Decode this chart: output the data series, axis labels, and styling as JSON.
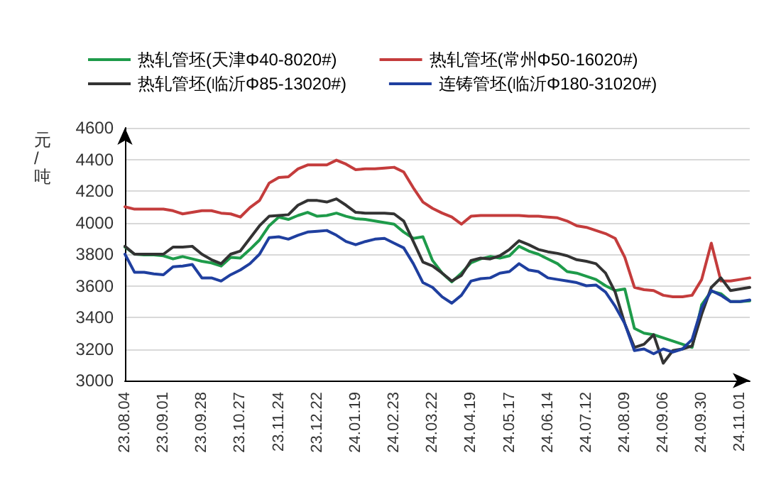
{
  "chart_data": {
    "type": "line",
    "ylabel": "元/吨",
    "legend": "top",
    "grid": "y",
    "marker": "none",
    "line_style": "solid",
    "categories": [
      "23.08.04",
      null,
      null,
      null,
      "23.09.01",
      null,
      null,
      null,
      "23.09.28",
      null,
      null,
      null,
      "23.10.27",
      null,
      null,
      null,
      "23.11.24",
      null,
      null,
      null,
      "23.12.22",
      null,
      null,
      null,
      "24.01.19",
      null,
      null,
      null,
      "24.02.23",
      null,
      null,
      null,
      "24.03.22",
      null,
      null,
      null,
      "24.04.19",
      null,
      null,
      null,
      "24.05.17",
      null,
      null,
      null,
      "24.06.14",
      null,
      null,
      null,
      "24.07.12",
      null,
      null,
      null,
      "24.08.09",
      null,
      null,
      null,
      "24.09.06",
      null,
      null,
      null,
      "24.09.30",
      null,
      null,
      null,
      "24.11.01",
      null
    ],
    "ylim": [
      3000,
      4600
    ],
    "yticks": [
      3000,
      3200,
      3400,
      3600,
      3800,
      4000,
      4200,
      4400,
      4600
    ],
    "series": [
      {
        "name": "热轧管坯(天津Φ40-8020#)",
        "color": "#1e9b4a",
        "values": [
          3845,
          3800,
          3795,
          3795,
          3790,
          3770,
          3785,
          3770,
          3755,
          3745,
          3725,
          3780,
          3775,
          3830,
          3890,
          3980,
          4035,
          4020,
          4045,
          4065,
          4040,
          4045,
          4060,
          4040,
          4025,
          4020,
          4010,
          4000,
          3990,
          3940,
          3900,
          3910,
          3760,
          3680,
          3625,
          3680,
          3745,
          3770,
          3785,
          3775,
          3790,
          3850,
          3820,
          3800,
          3770,
          3740,
          3690,
          3680,
          3660,
          3640,
          3600,
          3570,
          3580,
          3330,
          3300,
          3290,
          3270,
          3250,
          3230,
          3210,
          3480,
          3565,
          3550,
          3500,
          3500,
          3505
        ]
      },
      {
        "name": "热轧管坯(常州Φ50-16020#)",
        "color": "#c43c3c",
        "values": [
          4100,
          4085,
          4085,
          4085,
          4085,
          4075,
          4055,
          4065,
          4075,
          4075,
          4060,
          4055,
          4035,
          4095,
          4140,
          4250,
          4285,
          4290,
          4340,
          4365,
          4365,
          4365,
          4395,
          4370,
          4335,
          4340,
          4340,
          4345,
          4350,
          4320,
          4220,
          4130,
          4090,
          4060,
          4035,
          3990,
          4040,
          4045,
          4045,
          4045,
          4045,
          4045,
          4040,
          4040,
          4035,
          4030,
          4010,
          3980,
          3970,
          3950,
          3930,
          3900,
          3780,
          3590,
          3575,
          3570,
          3540,
          3530,
          3530,
          3540,
          3640,
          3870,
          3630,
          3630,
          3640,
          3650
        ]
      },
      {
        "name": "热轧管坯(临沂Φ85-13020#)",
        "color": "#333333",
        "values": [
          3850,
          3800,
          3800,
          3800,
          3800,
          3845,
          3845,
          3850,
          3800,
          3765,
          3740,
          3800,
          3820,
          3900,
          3980,
          4040,
          4045,
          4050,
          4110,
          4140,
          4140,
          4130,
          4150,
          4110,
          4065,
          4060,
          4060,
          4060,
          4055,
          4010,
          3880,
          3750,
          3725,
          3680,
          3630,
          3665,
          3760,
          3775,
          3770,
          3790,
          3830,
          3885,
          3860,
          3830,
          3815,
          3805,
          3790,
          3765,
          3755,
          3740,
          3680,
          3560,
          3360,
          3210,
          3230,
          3290,
          3110,
          3190,
          3200,
          3220,
          3420,
          3590,
          3650,
          3570,
          3580,
          3590
        ]
      },
      {
        "name": "连铸管坯(临沂Φ180-31020#)",
        "color": "#1f3f9f",
        "values": [
          3800,
          3685,
          3685,
          3675,
          3670,
          3720,
          3725,
          3735,
          3650,
          3650,
          3630,
          3670,
          3700,
          3740,
          3800,
          3905,
          3910,
          3895,
          3920,
          3940,
          3945,
          3950,
          3920,
          3880,
          3860,
          3880,
          3895,
          3900,
          3870,
          3840,
          3740,
          3620,
          3590,
          3530,
          3490,
          3540,
          3630,
          3645,
          3650,
          3680,
          3690,
          3740,
          3700,
          3690,
          3650,
          3640,
          3630,
          3620,
          3600,
          3605,
          3560,
          3470,
          3360,
          3190,
          3200,
          3170,
          3200,
          3180,
          3200,
          3260,
          3460,
          3570,
          3540,
          3500,
          3500,
          3510
        ]
      }
    ]
  }
}
